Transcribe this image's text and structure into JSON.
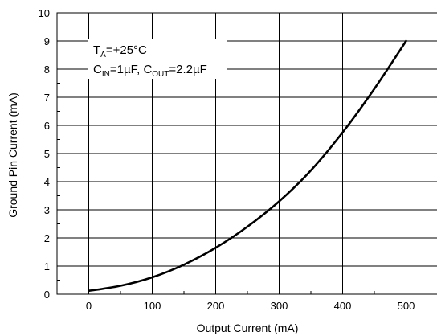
{
  "chart_data": {
    "type": "line",
    "title": "",
    "xlabel": "Output Current (mA)",
    "ylabel": "Ground Pin Current (mA)",
    "xlim": [
      -50,
      550
    ],
    "ylim": [
      0,
      10
    ],
    "xticks": [
      0,
      100,
      200,
      300,
      400,
      500
    ],
    "yticks": [
      0,
      1,
      2,
      3,
      4,
      5,
      6,
      7,
      8,
      9,
      10
    ],
    "grid": true,
    "series": [
      {
        "x": [
          0,
          50,
          100,
          150,
          200,
          250,
          300,
          350,
          400,
          450,
          500
        ],
        "y": [
          0.12,
          0.3,
          0.6,
          1.05,
          1.65,
          2.4,
          3.3,
          4.4,
          5.75,
          7.3,
          9.0
        ]
      }
    ],
    "annotations": {
      "line1": {
        "main": "T",
        "sub": "A",
        "rest": "=+25°C"
      },
      "line2": {
        "c_in": "C",
        "c_in_sub": "IN",
        "c_in_rest": "=1µF, ",
        "c_out": "C",
        "c_out_sub": "OUT",
        "c_out_rest": "=2.2µF"
      }
    },
    "line_color": "#000000"
  }
}
